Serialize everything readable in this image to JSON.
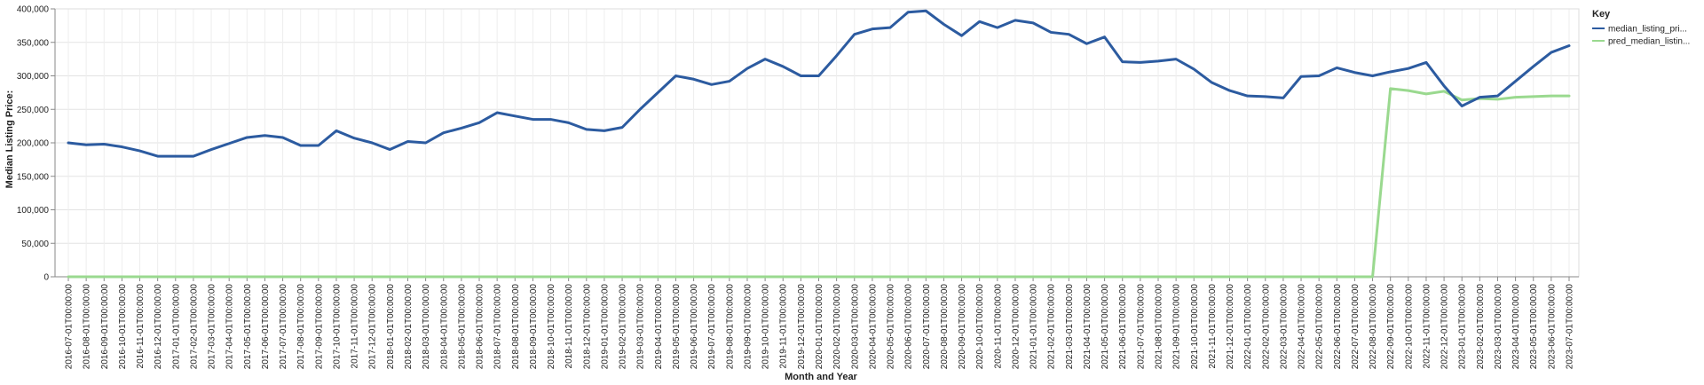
{
  "chart_data": {
    "type": "line",
    "xlabel": "Month and Year",
    "ylabel": "Median Listing Price:",
    "ylim": [
      0,
      400000
    ],
    "yticks": [
      "0",
      "50,000",
      "100,000",
      "150,000",
      "200,000",
      "250,000",
      "300,000",
      "350,000",
      "400,000"
    ],
    "grid": true,
    "legend": {
      "title": "Key",
      "placement": "right"
    },
    "x": [
      "2016-07-01T00:00:00",
      "2016-08-01T00:00:00",
      "2016-09-01T00:00:00",
      "2016-10-01T00:00:00",
      "2016-11-01T00:00:00",
      "2016-12-01T00:00:00",
      "2017-01-01T00:00:00",
      "2017-02-01T00:00:00",
      "2017-03-01T00:00:00",
      "2017-04-01T00:00:00",
      "2017-05-01T00:00:00",
      "2017-06-01T00:00:00",
      "2017-07-01T00:00:00",
      "2017-08-01T00:00:00",
      "2017-09-01T00:00:00",
      "2017-10-01T00:00:00",
      "2017-11-01T00:00:00",
      "2017-12-01T00:00:00",
      "2018-01-01T00:00:00",
      "2018-02-01T00:00:00",
      "2018-03-01T00:00:00",
      "2018-04-01T00:00:00",
      "2018-05-01T00:00:00",
      "2018-06-01T00:00:00",
      "2018-07-01T00:00:00",
      "2018-08-01T00:00:00",
      "2018-09-01T00:00:00",
      "2018-10-01T00:00:00",
      "2018-11-01T00:00:00",
      "2018-12-01T00:00:00",
      "2019-01-01T00:00:00",
      "2019-02-01T00:00:00",
      "2019-03-01T00:00:00",
      "2019-04-01T00:00:00",
      "2019-05-01T00:00:00",
      "2019-06-01T00:00:00",
      "2019-07-01T00:00:00",
      "2019-08-01T00:00:00",
      "2019-09-01T00:00:00",
      "2019-10-01T00:00:00",
      "2019-11-01T00:00:00",
      "2019-12-01T00:00:00",
      "2020-01-01T00:00:00",
      "2020-02-01T00:00:00",
      "2020-03-01T00:00:00",
      "2020-04-01T00:00:00",
      "2020-05-01T00:00:00",
      "2020-06-01T00:00:00",
      "2020-07-01T00:00:00",
      "2020-08-01T00:00:00",
      "2020-09-01T00:00:00",
      "2020-10-01T00:00:00",
      "2020-11-01T00:00:00",
      "2020-12-01T00:00:00",
      "2021-01-01T00:00:00",
      "2021-02-01T00:00:00",
      "2021-03-01T00:00:00",
      "2021-04-01T00:00:00",
      "2021-05-01T00:00:00",
      "2021-06-01T00:00:00",
      "2021-07-01T00:00:00",
      "2021-08-01T00:00:00",
      "2021-09-01T00:00:00",
      "2021-10-01T00:00:00",
      "2021-11-01T00:00:00",
      "2021-12-01T00:00:00",
      "2022-01-01T00:00:00",
      "2022-02-01T00:00:00",
      "2022-03-01T00:00:00",
      "2022-04-01T00:00:00",
      "2022-05-01T00:00:00",
      "2022-06-01T00:00:00",
      "2022-07-01T00:00:00",
      "2022-08-01T00:00:00",
      "2022-09-01T00:00:00",
      "2022-10-01T00:00:00",
      "2022-11-01T00:00:00",
      "2022-12-01T00:00:00",
      "2023-01-01T00:00:00",
      "2023-02-01T00:00:00",
      "2023-03-01T00:00:00",
      "2023-04-01T00:00:00",
      "2023-05-01T00:00:00",
      "2023-06-01T00:00:00",
      "2023-07-01T00:00:00"
    ],
    "series": [
      {
        "name": "median_listing_pri...",
        "color": "#2c5ba0",
        "values": [
          200000,
          197000,
          198000,
          194000,
          188000,
          180000,
          180000,
          180000,
          190000,
          199000,
          208000,
          211000,
          208000,
          196000,
          196000,
          218000,
          207000,
          200000,
          190000,
          202000,
          200000,
          215000,
          222000,
          230000,
          245000,
          240000,
          235000,
          235000,
          230000,
          220000,
          218000,
          223000,
          250000,
          275000,
          300000,
          295000,
          287000,
          292000,
          311000,
          325000,
          314000,
          300000,
          300000,
          330000,
          362000,
          370000,
          372000,
          395000,
          397000,
          377000,
          360000,
          381000,
          372000,
          383000,
          379000,
          365000,
          362000,
          348000,
          358000,
          321000,
          320000,
          322000,
          325000,
          310000,
          290000,
          278000,
          270000,
          269000,
          267000,
          299000,
          300000,
          312000,
          305000,
          300000,
          306000,
          311000,
          320000,
          285000,
          255000,
          268000,
          270000,
          292000,
          314000,
          335000,
          345000
        ]
      },
      {
        "name": "pred_median_listin...",
        "color": "#9ad98f",
        "values": [
          0,
          0,
          0,
          0,
          0,
          0,
          0,
          0,
          0,
          0,
          0,
          0,
          0,
          0,
          0,
          0,
          0,
          0,
          0,
          0,
          0,
          0,
          0,
          0,
          0,
          0,
          0,
          0,
          0,
          0,
          0,
          0,
          0,
          0,
          0,
          0,
          0,
          0,
          0,
          0,
          0,
          0,
          0,
          0,
          0,
          0,
          0,
          0,
          0,
          0,
          0,
          0,
          0,
          0,
          0,
          0,
          0,
          0,
          0,
          0,
          0,
          0,
          0,
          0,
          0,
          0,
          0,
          0,
          0,
          0,
          0,
          0,
          0,
          0,
          281000,
          278000,
          273000,
          277000,
          264000,
          266000,
          265000,
          268000,
          269000,
          270000,
          270000
        ]
      }
    ]
  }
}
